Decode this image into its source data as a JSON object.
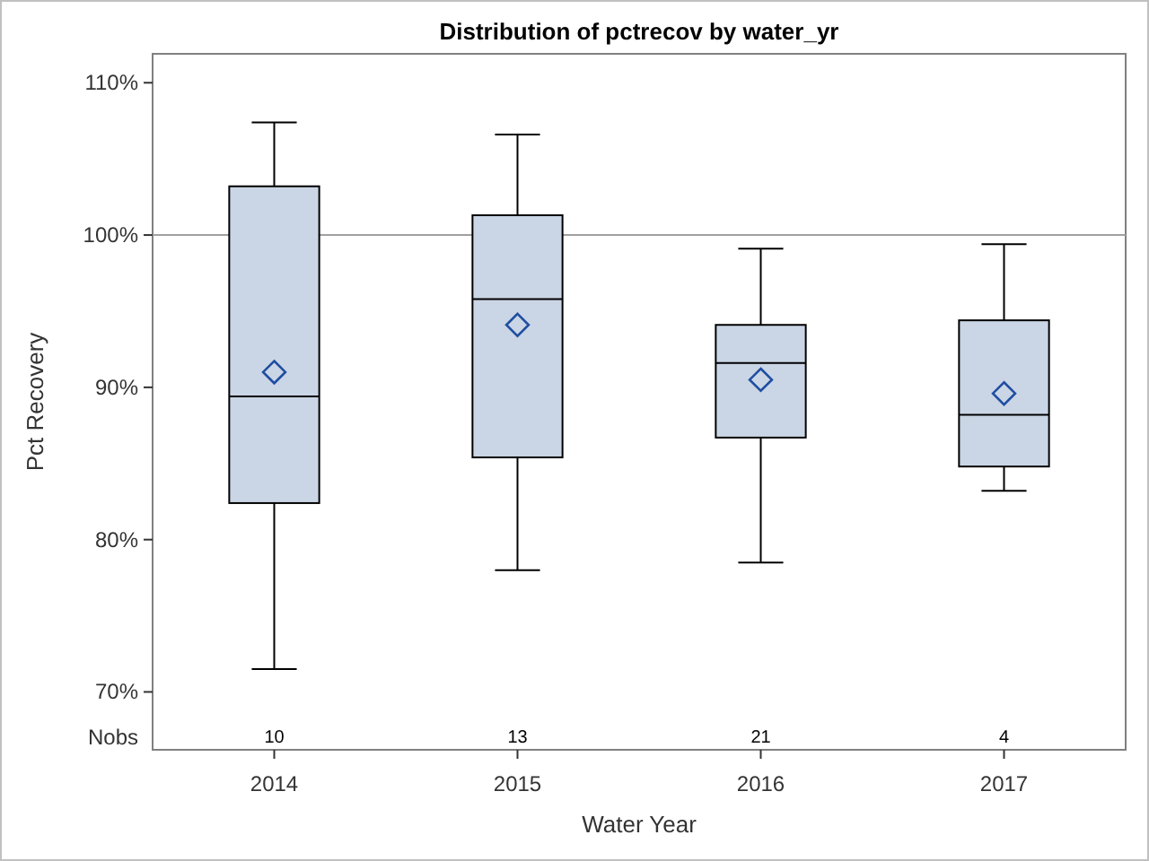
{
  "chart_data": {
    "type": "box",
    "title": "Distribution of pctrecov by water_yr",
    "xlabel": "Water Year",
    "ylabel": "Pct Recovery",
    "categories": [
      "2014",
      "2015",
      "2016",
      "2017"
    ],
    "series": [
      {
        "color": "#cad5e5",
        "marker": "diamond",
        "boxes": [
          {
            "low": 71.5,
            "q1": 82.4,
            "median": 89.4,
            "q3": 103.2,
            "high": 107.4,
            "mean": 91.0
          },
          {
            "low": 78.0,
            "q1": 85.4,
            "median": 95.8,
            "q3": 101.3,
            "high": 106.6,
            "mean": 94.1
          },
          {
            "low": 78.5,
            "q1": 86.7,
            "median": 91.6,
            "q3": 94.1,
            "high": 99.1,
            "mean": 90.5
          },
          {
            "low": 83.2,
            "q1": 84.8,
            "median": 88.2,
            "q3": 94.4,
            "high": 99.4,
            "mean": 89.6
          }
        ]
      }
    ],
    "ylim": [
      66.2,
      111.9
    ],
    "yticks": [
      {
        "value": 70,
        "label": "70%"
      },
      {
        "value": 80,
        "label": "80%"
      },
      {
        "value": 90,
        "label": "90%"
      },
      {
        "value": 100,
        "label": "100%"
      },
      {
        "value": 110,
        "label": "110%"
      }
    ],
    "ref_lines": [
      {
        "axis": "y",
        "value": 100,
        "color": "#a0a0a0"
      }
    ],
    "annotations": [
      "Nobs",
      "10",
      "13",
      "21",
      "4"
    ]
  }
}
